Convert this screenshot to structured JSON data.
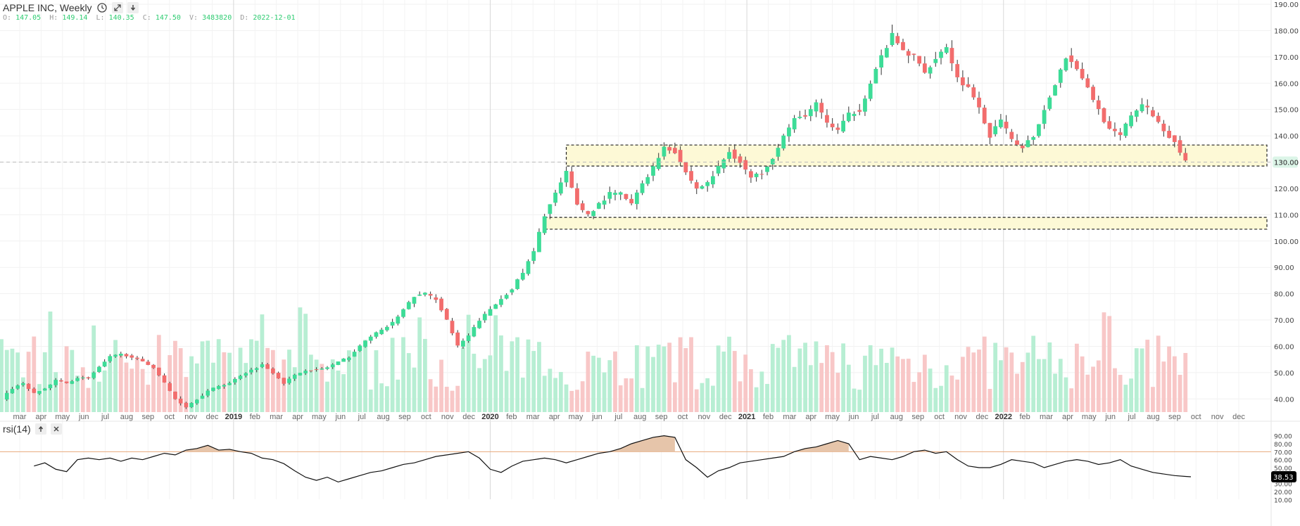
{
  "header": {
    "title": "APPLE INC, Weekly",
    "ohlc": {
      "o_label": "O:",
      "o": "147.05",
      "h_label": "H:",
      "h": "149.14",
      "l_label": "L:",
      "l": "140.35",
      "c_label": "C:",
      "c": "147.50",
      "v_label": "V:",
      "v": "3483820",
      "d_label": "D:",
      "d": "2022-12-01"
    }
  },
  "indicator": {
    "title": "rsi(14)"
  },
  "icons": [
    "clock-icon",
    "expand-icon",
    "arrow-down-icon",
    "arrow-up-icon",
    "close-icon"
  ],
  "colors": {
    "up": "#3ddc97",
    "down": "#f26d6d",
    "up_volume": "#b7eed3",
    "down_volume": "#f8c7c7",
    "zone_fill": "#fdf9d6",
    "rsi_fill": "#e6c5aa",
    "rsi_line": "#111111",
    "last_price_bg": "#dcf5e8",
    "rsi_badge_bg": "#000000"
  },
  "chart_data": [
    {
      "type": "candlestick",
      "title": "APPLE INC, Weekly",
      "y_range": [
        35,
        190
      ],
      "y_ticks": [
        "190.00",
        "180.00",
        "170.00",
        "160.00",
        "150.00",
        "140.00",
        "130.00",
        "120.00",
        "110.00",
        "100.00",
        "90.00",
        "80.00",
        "70.00",
        "60.00",
        "50.00",
        "40.00"
      ],
      "last_price_label": "130.00",
      "x_labels": [
        "mar",
        "apr",
        "may",
        "jun",
        "jul",
        "aug",
        "sep",
        "oct",
        "nov",
        "dec",
        "2019",
        "feb",
        "mar",
        "apr",
        "may",
        "jun",
        "jul",
        "aug",
        "sep",
        "oct",
        "nov",
        "dec",
        "2020",
        "feb",
        "mar",
        "apr",
        "may",
        "jun",
        "jul",
        "aug",
        "sep",
        "oct",
        "nov",
        "dec",
        "2021",
        "feb",
        "mar",
        "apr",
        "may",
        "jun",
        "jul",
        "aug",
        "sep",
        "oct",
        "nov",
        "dec",
        "2022",
        "feb",
        "mar",
        "apr",
        "may",
        "jun",
        "jul",
        "aug",
        "sep",
        "oct",
        "nov",
        "dec"
      ],
      "price_path": [
        [
          0,
          40
        ],
        [
          2,
          44
        ],
        [
          4,
          46
        ],
        [
          6,
          42
        ],
        [
          8,
          44
        ],
        [
          10,
          47
        ],
        [
          12,
          46
        ],
        [
          14,
          48
        ],
        [
          16,
          48
        ],
        [
          18,
          52
        ],
        [
          20,
          56
        ],
        [
          22,
          57
        ],
        [
          24,
          56
        ],
        [
          26,
          54
        ],
        [
          28,
          52
        ],
        [
          30,
          46
        ],
        [
          32,
          40
        ],
        [
          34,
          37
        ],
        [
          36,
          40
        ],
        [
          38,
          43
        ],
        [
          40,
          45
        ],
        [
          42,
          46
        ],
        [
          44,
          49
        ],
        [
          46,
          51
        ],
        [
          48,
          53
        ],
        [
          50,
          50
        ],
        [
          52,
          46
        ],
        [
          54,
          49
        ],
        [
          56,
          51
        ],
        [
          58,
          51
        ],
        [
          60,
          52
        ],
        [
          62,
          54
        ],
        [
          64,
          56
        ],
        [
          66,
          60
        ],
        [
          68,
          64
        ],
        [
          70,
          66
        ],
        [
          72,
          69
        ],
        [
          74,
          74
        ],
        [
          76,
          79
        ],
        [
          78,
          80
        ],
        [
          80,
          78
        ],
        [
          82,
          70
        ],
        [
          84,
          60
        ],
        [
          86,
          64
        ],
        [
          88,
          70
        ],
        [
          90,
          74
        ],
        [
          92,
          78
        ],
        [
          94,
          82
        ],
        [
          96,
          88
        ],
        [
          98,
          96
        ],
        [
          100,
          110
        ],
        [
          102,
          118
        ],
        [
          104,
          126
        ],
        [
          106,
          114
        ],
        [
          108,
          110
        ],
        [
          110,
          114
        ],
        [
          112,
          118
        ],
        [
          114,
          118
        ],
        [
          116,
          114
        ],
        [
          118,
          122
        ],
        [
          120,
          128
        ],
        [
          122,
          136
        ],
        [
          124,
          134
        ],
        [
          126,
          126
        ],
        [
          128,
          120
        ],
        [
          130,
          122
        ],
        [
          132,
          128
        ],
        [
          134,
          134
        ],
        [
          136,
          130
        ],
        [
          138,
          124
        ],
        [
          140,
          126
        ],
        [
          142,
          132
        ],
        [
          144,
          140
        ],
        [
          146,
          146
        ],
        [
          148,
          148
        ],
        [
          150,
          152
        ],
        [
          152,
          145
        ],
        [
          154,
          142
        ],
        [
          156,
          148
        ],
        [
          158,
          150
        ],
        [
          160,
          160
        ],
        [
          162,
          170
        ],
        [
          164,
          178
        ],
        [
          166,
          172
        ],
        [
          168,
          170
        ],
        [
          170,
          164
        ],
        [
          172,
          170
        ],
        [
          174,
          174
        ],
        [
          176,
          162
        ],
        [
          178,
          158
        ],
        [
          180,
          150
        ],
        [
          182,
          140
        ],
        [
          184,
          146
        ],
        [
          186,
          138
        ],
        [
          188,
          136
        ],
        [
          190,
          140
        ],
        [
          192,
          150
        ],
        [
          194,
          160
        ],
        [
          196,
          170
        ],
        [
          198,
          166
        ],
        [
          200,
          158
        ],
        [
          202,
          150
        ],
        [
          204,
          142
        ],
        [
          206,
          140
        ],
        [
          208,
          148
        ],
        [
          210,
          152
        ],
        [
          212,
          148
        ],
        [
          214,
          142
        ],
        [
          216,
          138
        ],
        [
          218,
          130
        ]
      ],
      "zones": [
        {
          "x_start_week": 104,
          "x_end_week": 233,
          "y_bottom": 128.5,
          "y_top": 136.5
        },
        {
          "x_start_week": 100,
          "x_end_week": 233,
          "y_bottom": 104.5,
          "y_top": 109
        }
      ]
    },
    {
      "type": "line",
      "title": "rsi(14)",
      "y_range": [
        5,
        95
      ],
      "y_ticks": [
        "90.00",
        "80.00",
        "70.00",
        "60.00",
        "50.00",
        "40.00",
        "30.00",
        "20.00",
        "10.00"
      ],
      "overbought": 70,
      "last_value_label": "38.53",
      "series": [
        {
          "values": [
            [
              6,
              52
            ],
            [
              8,
              56
            ],
            [
              10,
              48
            ],
            [
              12,
              45
            ],
            [
              14,
              60
            ],
            [
              16,
              62
            ],
            [
              18,
              60
            ],
            [
              20,
              62
            ],
            [
              22,
              58
            ],
            [
              24,
              62
            ],
            [
              26,
              60
            ],
            [
              28,
              64
            ],
            [
              30,
              68
            ],
            [
              32,
              66
            ],
            [
              34,
              72
            ],
            [
              36,
              74
            ],
            [
              38,
              78
            ],
            [
              40,
              72
            ],
            [
              42,
              73
            ],
            [
              44,
              70
            ],
            [
              46,
              68
            ],
            [
              48,
              62
            ],
            [
              50,
              60
            ],
            [
              52,
              55
            ],
            [
              54,
              46
            ],
            [
              56,
              38
            ],
            [
              58,
              34
            ],
            [
              60,
              38
            ],
            [
              62,
              32
            ],
            [
              64,
              36
            ],
            [
              66,
              40
            ],
            [
              68,
              44
            ],
            [
              70,
              46
            ],
            [
              72,
              50
            ],
            [
              74,
              54
            ],
            [
              76,
              56
            ],
            [
              78,
              60
            ],
            [
              80,
              64
            ],
            [
              82,
              66
            ],
            [
              84,
              68
            ],
            [
              86,
              70
            ],
            [
              88,
              62
            ],
            [
              90,
              48
            ],
            [
              92,
              44
            ],
            [
              94,
              52
            ],
            [
              96,
              58
            ],
            [
              98,
              60
            ],
            [
              100,
              62
            ],
            [
              102,
              60
            ],
            [
              104,
              56
            ],
            [
              106,
              60
            ],
            [
              108,
              64
            ],
            [
              110,
              68
            ],
            [
              112,
              70
            ],
            [
              114,
              74
            ],
            [
              116,
              80
            ],
            [
              118,
              84
            ],
            [
              120,
              88
            ],
            [
              122,
              90
            ],
            [
              124,
              88
            ],
            [
              126,
              60
            ],
            [
              128,
              50
            ],
            [
              130,
              38
            ],
            [
              132,
              46
            ],
            [
              134,
              50
            ],
            [
              136,
              56
            ],
            [
              138,
              58
            ],
            [
              140,
              60
            ],
            [
              142,
              62
            ],
            [
              144,
              64
            ],
            [
              146,
              70
            ],
            [
              148,
              74
            ],
            [
              150,
              76
            ],
            [
              152,
              80
            ],
            [
              154,
              84
            ],
            [
              156,
              80
            ],
            [
              158,
              60
            ],
            [
              160,
              64
            ],
            [
              162,
              62
            ],
            [
              164,
              60
            ],
            [
              166,
              64
            ],
            [
              168,
              70
            ],
            [
              170,
              72
            ],
            [
              172,
              68
            ],
            [
              174,
              70
            ],
            [
              176,
              60
            ],
            [
              178,
              52
            ],
            [
              180,
              50
            ],
            [
              182,
              50
            ],
            [
              184,
              54
            ],
            [
              186,
              60
            ],
            [
              188,
              58
            ],
            [
              190,
              56
            ],
            [
              192,
              50
            ],
            [
              194,
              54
            ],
            [
              196,
              58
            ],
            [
              198,
              60
            ],
            [
              200,
              58
            ],
            [
              202,
              54
            ],
            [
              204,
              56
            ],
            [
              206,
              60
            ],
            [
              208,
              52
            ],
            [
              210,
              48
            ],
            [
              212,
              44
            ],
            [
              214,
              42
            ],
            [
              216,
              40
            ],
            [
              218,
              39
            ],
            [
              219,
              38.53
            ]
          ]
        }
      ]
    }
  ]
}
